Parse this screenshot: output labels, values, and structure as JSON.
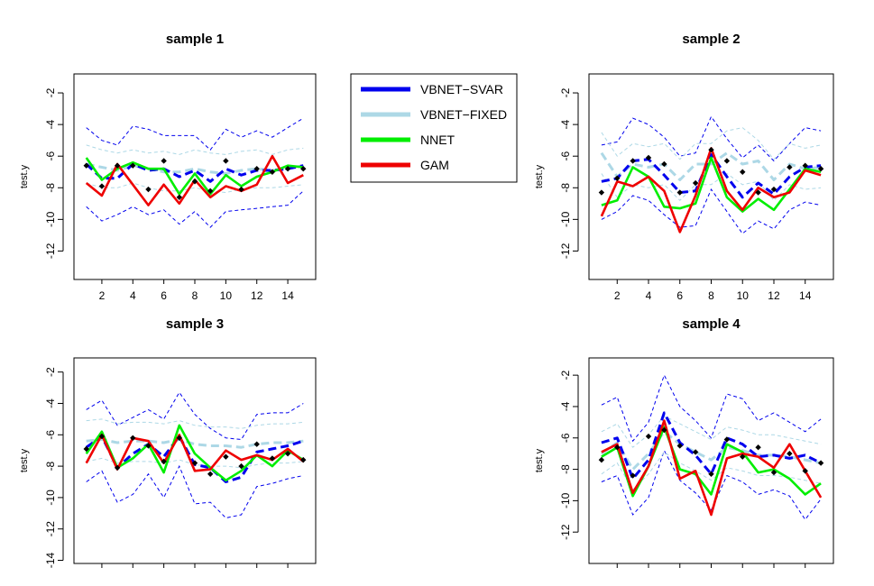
{
  "legend": {
    "entries": [
      {
        "label": "VBNET−SVAR",
        "color": "#0000ee"
      },
      {
        "label": "VBNET−FIXED",
        "color": "#add8e6"
      },
      {
        "label": "NNET",
        "color": "#00ee00"
      },
      {
        "label": "GAM",
        "color": "#ee0000"
      }
    ]
  },
  "chart_data": [
    {
      "type": "line",
      "title": "sample 1",
      "ylabel": "test.y",
      "xlim": [
        0.2,
        15.8
      ],
      "ylim": [
        -13.8,
        -0.8
      ],
      "yticks": [
        -2,
        -4,
        -6,
        -8,
        -10,
        -12
      ],
      "xticks": [
        2,
        4,
        6,
        8,
        10,
        12,
        14
      ],
      "x": [
        1,
        2,
        3,
        4,
        5,
        6,
        7,
        8,
        9,
        10,
        11,
        12,
        13,
        14,
        15
      ],
      "points": [
        -6.6,
        -7.9,
        -6.6,
        -6.6,
        -8.1,
        -6.3,
        -8.6,
        -7.6,
        -8.2,
        -6.3,
        -8.1,
        -6.8,
        -7,
        -6.8,
        -6.8
      ],
      "series": [
        {
          "name": "VBNET−SVAR",
          "values": [
            -6.5,
            -7.4,
            -7.4,
            -6.5,
            -6.9,
            -6.8,
            -7.3,
            -6.9,
            -7.6,
            -6.8,
            -7.2,
            -6.9,
            -6.9,
            -6.8,
            -6.6
          ],
          "upper": [
            -4.2,
            -5,
            -5.3,
            -4.1,
            -4.3,
            -4.7,
            -4.7,
            -4.7,
            -5.6,
            -4.3,
            -4.8,
            -4.4,
            -4.8,
            -4.2,
            -3.6
          ],
          "lower": [
            -9.2,
            -10.1,
            -9.7,
            -9.2,
            -9.7,
            -9.4,
            -10.3,
            -9.5,
            -10.5,
            -9.5,
            -9.4,
            -9.3,
            -9.2,
            -9.1,
            -8.2
          ]
        },
        {
          "name": "VBNET−FIXED",
          "values": [
            -6.5,
            -6.7,
            -6.9,
            -6.6,
            -6.8,
            -7,
            -7,
            -6.8,
            -7,
            -7.1,
            -6.9,
            -6.8,
            -6.9,
            -6.8,
            -6.6
          ],
          "upper": [
            -5.3,
            -5.6,
            -5.8,
            -5.6,
            -5.8,
            -5.7,
            -5.9,
            -5.6,
            -5.8,
            -5.9,
            -5.7,
            -5.6,
            -5.9,
            -5.6,
            -5.5
          ],
          "lower": [
            -7.7,
            -8,
            -8,
            -7.7,
            -8,
            -8.2,
            -8.2,
            -8,
            -8.2,
            -8.3,
            -8.1,
            -8,
            -8,
            -7.9,
            -7.8
          ]
        },
        {
          "name": "NNET",
          "values": [
            -6.1,
            -7.5,
            -6.8,
            -6.4,
            -6.8,
            -6.8,
            -8.4,
            -7.1,
            -8.4,
            -7.2,
            -7.9,
            -7.3,
            -7,
            -6.6,
            -6.7
          ]
        },
        {
          "name": "GAM",
          "values": [
            -7.7,
            -8.5,
            -6.5,
            -7.8,
            -9.1,
            -7.8,
            -9,
            -7.5,
            -8.6,
            -7.9,
            -8.2,
            -7.8,
            -6,
            -7.7,
            -7.2
          ]
        }
      ]
    },
    {
      "type": "line",
      "title": "sample 2",
      "ylabel": "test.y",
      "xlim": [
        0.2,
        15.8
      ],
      "ylim": [
        -13.8,
        -0.8
      ],
      "yticks": [
        -2,
        -4,
        -6,
        -8,
        -10,
        -12
      ],
      "xticks": [
        2,
        4,
        6,
        8,
        10,
        12,
        14
      ],
      "x": [
        1,
        2,
        3,
        4,
        5,
        6,
        7,
        8,
        9,
        10,
        11,
        12,
        13,
        14,
        15
      ],
      "points": [
        -8.3,
        -7.4,
        -6.3,
        -6.1,
        -6.5,
        -8.3,
        -7.7,
        -5.6,
        -6.3,
        -7,
        -8.3,
        -8.1,
        -6.7,
        -6.6,
        -6.8
      ],
      "series": [
        {
          "name": "VBNET−SVAR",
          "values": [
            -7.6,
            -7.4,
            -6.3,
            -6.2,
            -7.2,
            -8.3,
            -8.2,
            -5.9,
            -7.3,
            -8.6,
            -7.7,
            -8.4,
            -7.3,
            -6.7,
            -6.6
          ],
          "upper": [
            -5.3,
            -5.1,
            -3.6,
            -4,
            -4.8,
            -6,
            -5.8,
            -3.5,
            -4.9,
            -6.1,
            -5.3,
            -6.3,
            -5.2,
            -4.2,
            -4.4
          ],
          "lower": [
            -10,
            -9.5,
            -8.5,
            -8.8,
            -9.7,
            -10.5,
            -10.4,
            -8.1,
            -9.5,
            -10.9,
            -10.1,
            -10.6,
            -9.4,
            -8.9,
            -9.1
          ]
        },
        {
          "name": "VBNET−FIXED",
          "values": [
            -5.8,
            -7.3,
            -6.5,
            -6.7,
            -6.5,
            -7.5,
            -6.5,
            -6.5,
            -5.8,
            -6.5,
            -6.3,
            -7.5,
            -6.5,
            -6.8,
            -6.7
          ],
          "upper": [
            -4.5,
            -6,
            -5.2,
            -5.4,
            -5.2,
            -6.2,
            -5.2,
            -5.2,
            -4.4,
            -4.2,
            -5,
            -6.2,
            -5.2,
            -5.5,
            -5.3
          ],
          "lower": [
            -7.1,
            -8.6,
            -7.8,
            -8,
            -7.8,
            -8.8,
            -7.8,
            -7.8,
            -7.1,
            -7.8,
            -7.6,
            -8.8,
            -7.8,
            -8.1,
            -8
          ]
        },
        {
          "name": "NNET",
          "values": [
            -9.1,
            -8.8,
            -6.7,
            -7.3,
            -9.2,
            -9.3,
            -9,
            -6.1,
            -8.6,
            -9.5,
            -8.7,
            -9.4,
            -8.1,
            -6.8,
            -7
          ]
        },
        {
          "name": "GAM",
          "values": [
            -9.8,
            -7.6,
            -7.9,
            -7.3,
            -8.2,
            -10.8,
            -8.5,
            -5.5,
            -8.2,
            -9.4,
            -8,
            -8.6,
            -8.3,
            -6.9,
            -7.2
          ]
        }
      ]
    },
    {
      "type": "line",
      "title": "sample 3",
      "ylabel": "test.y",
      "xlim": [
        0.2,
        15.8
      ],
      "ylim": [
        -14.2,
        -1.1
      ],
      "yticks": [
        -2,
        -4,
        -6,
        -8,
        -10,
        -12,
        -14
      ],
      "xticks": [],
      "x": [
        1,
        2,
        3,
        4,
        5,
        6,
        7,
        8,
        9,
        10,
        11,
        12,
        13,
        14,
        15
      ],
      "points": [
        -6.9,
        -6.1,
        -8.1,
        -6.2,
        -6.7,
        -7.7,
        -6.2,
        -7.8,
        -8.5,
        -7.4,
        -8,
        -6.6,
        -7.5,
        -7.2,
        -7.6
      ],
      "series": [
        {
          "name": "VBNET−SVAR",
          "values": [
            -6.8,
            -6.1,
            -8.1,
            -7.2,
            -6.6,
            -7.4,
            -6.1,
            -7.9,
            -8.1,
            -9,
            -8.7,
            -7.1,
            -6.9,
            -6.7,
            -6.4
          ],
          "upper": [
            -4.4,
            -3.8,
            -5.4,
            -4.9,
            -4.4,
            -5,
            -3.3,
            -4.7,
            -5.6,
            -6.2,
            -6.3,
            -4.7,
            -4.6,
            -4.6,
            -4
          ],
          "lower": [
            -9,
            -8.3,
            -10.3,
            -9.8,
            -8.5,
            -10,
            -8,
            -10.4,
            -10.3,
            -11.3,
            -11.1,
            -9.3,
            -9.1,
            -8.8,
            -8.6
          ]
        },
        {
          "name": "VBNET−FIXED",
          "values": [
            -6.4,
            -6.3,
            -6.5,
            -6.4,
            -6.4,
            -6.5,
            -6.3,
            -6.6,
            -6.7,
            -6.7,
            -6.8,
            -6.6,
            -6.5,
            -6.5,
            -6.4
          ],
          "upper": [
            -5.1,
            -5,
            -5.3,
            -5.2,
            -5.2,
            -5.3,
            -5.1,
            -5.4,
            -5.5,
            -5.5,
            -5.6,
            -5.4,
            -5.3,
            -5.3,
            -5.2
          ],
          "lower": [
            -7.7,
            -7.5,
            -7.8,
            -7.7,
            -7.7,
            -7.8,
            -7.6,
            -7.9,
            -8,
            -8,
            -8.1,
            -7.9,
            -7.8,
            -7.8,
            -7.7
          ]
        },
        {
          "name": "NNET",
          "values": [
            -7.2,
            -5.8,
            -8.1,
            -7.5,
            -6.6,
            -8.4,
            -5.4,
            -7.2,
            -8.1,
            -8.9,
            -8.3,
            -7.3,
            -8,
            -7,
            -7.6
          ]
        },
        {
          "name": "GAM",
          "values": [
            -7.8,
            -6,
            -8.2,
            -6.2,
            -6.4,
            -7.8,
            -6,
            -8.3,
            -8.2,
            -7,
            -7.6,
            -7.3,
            -7.6,
            -6.9,
            -7.7
          ]
        }
      ]
    },
    {
      "type": "line",
      "title": "sample 4",
      "ylabel": "test.y",
      "xlim": [
        0.2,
        15.8
      ],
      "ylim": [
        -14,
        -0.9
      ],
      "yticks": [
        -2,
        -4,
        -6,
        -8,
        -10,
        -12
      ],
      "xticks": [],
      "x": [
        1,
        2,
        3,
        4,
        5,
        6,
        7,
        8,
        9,
        10,
        11,
        12,
        13,
        14,
        15
      ],
      "points": [
        -7.4,
        -6.6,
        -8.4,
        -5.9,
        -5.5,
        -6.5,
        -6.9,
        -8.3,
        -6.1,
        -7.2,
        -6.6,
        -8.2,
        -7,
        -8.1,
        -7.6
      ],
      "series": [
        {
          "name": "VBNET−SVAR",
          "values": [
            -6.3,
            -6,
            -8.6,
            -7.4,
            -4.4,
            -6.3,
            -7.1,
            -8.3,
            -6,
            -6.4,
            -7.2,
            -7.1,
            -7.3,
            -7.1,
            -7.6
          ],
          "upper": [
            -3.9,
            -3.4,
            -6.2,
            -5,
            -2,
            -4,
            -4.9,
            -6,
            -3.2,
            -3.5,
            -4.9,
            -4.4,
            -5,
            -5.6,
            -4.8
          ],
          "lower": [
            -8.8,
            -8.4,
            -10.9,
            -9.8,
            -6.8,
            -8.7,
            -9.5,
            -10.6,
            -8.4,
            -8.8,
            -9.6,
            -9.3,
            -9.7,
            -11.2,
            -9.9
          ]
        },
        {
          "name": "VBNET−FIXED",
          "values": [
            -7,
            -6.3,
            -8,
            -7,
            -5.6,
            -6.4,
            -6.9,
            -7.4,
            -6.6,
            -6.8,
            -7.1,
            -7.1,
            -7.2,
            -7.4,
            -7.6
          ],
          "upper": [
            -5.6,
            -5.1,
            -6.6,
            -5.8,
            -4.6,
            -5.1,
            -5.6,
            -6.1,
            -5.3,
            -5.5,
            -5.8,
            -5.8,
            -6,
            -6.2,
            -6.4
          ],
          "lower": [
            -8.3,
            -7.6,
            -9.3,
            -8.3,
            -6.9,
            -7.6,
            -8.1,
            -8.7,
            -7.9,
            -8.1,
            -8.4,
            -8.4,
            -8.5,
            -8.7,
            -8.9
          ]
        },
        {
          "name": "NNET",
          "values": [
            -7.2,
            -6.6,
            -9.7,
            -7.8,
            -5.3,
            -8,
            -8.3,
            -9.6,
            -6.4,
            -6.9,
            -8.2,
            -8,
            -8.6,
            -9.6,
            -8.9
          ]
        },
        {
          "name": "GAM",
          "values": [
            -6.9,
            -6.4,
            -9.5,
            -7.8,
            -4.9,
            -8.6,
            -8.1,
            -10.9,
            -7.3,
            -7,
            -7.2,
            -7.9,
            -6.4,
            -8.1,
            -9.8
          ]
        }
      ]
    }
  ]
}
